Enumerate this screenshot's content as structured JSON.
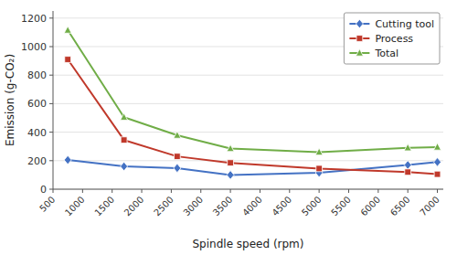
{
  "chart_data": {
    "type": "line",
    "xlabel": "Spindle speed (rpm)",
    "ylabel": "Emission (g-CO₂)",
    "x": [
      750,
      1700,
      2600,
      3500,
      5000,
      6500,
      7000
    ],
    "series": [
      {
        "name": "Cutting tool",
        "color": "#4472c4",
        "marker": "diamond",
        "values": [
          205,
          160,
          148,
          100,
          115,
          170,
          190
        ]
      },
      {
        "name": "Process",
        "color": "#c0392b",
        "marker": "square",
        "values": [
          910,
          345,
          230,
          185,
          145,
          120,
          105
        ]
      },
      {
        "name": "Total",
        "color": "#70ad47",
        "marker": "triangle",
        "values": [
          1115,
          505,
          378,
          285,
          260,
          290,
          295
        ]
      }
    ],
    "xlim": [
      500,
      7100
    ],
    "ylim": [
      0,
      1250
    ],
    "xticks": [
      500,
      1000,
      1500,
      2000,
      2500,
      3000,
      3500,
      4000,
      4500,
      5000,
      5500,
      6000,
      6500,
      7000
    ],
    "yticks": [
      0,
      200,
      400,
      600,
      800,
      1000,
      1200
    ],
    "grid": true,
    "legend": "upper right"
  }
}
